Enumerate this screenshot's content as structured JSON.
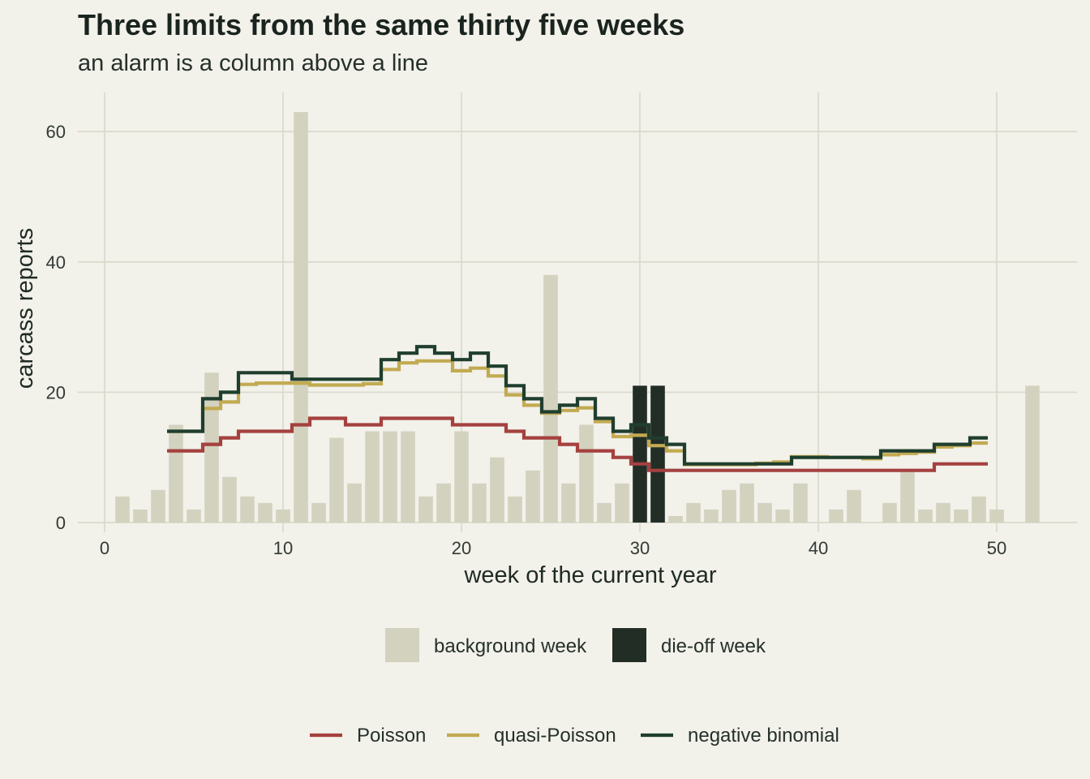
{
  "chart_data": {
    "type": "bar",
    "title": "Three limits from the same thirty five weeks",
    "subtitle": "an alarm is a column above a line",
    "xlabel": "week of the current year",
    "ylabel": "carcass reports",
    "xlim": [
      -1.5,
      54.5
    ],
    "ylim": [
      -1.5,
      66
    ],
    "x_ticks": [
      0,
      10,
      20,
      30,
      40,
      50
    ],
    "y_ticks": [
      0,
      20,
      40,
      60
    ],
    "grid": true,
    "bars": {
      "weeks": [
        1,
        2,
        3,
        4,
        5,
        6,
        7,
        8,
        9,
        10,
        11,
        12,
        13,
        14,
        15,
        16,
        17,
        18,
        19,
        20,
        21,
        22,
        23,
        24,
        25,
        26,
        27,
        28,
        29,
        30,
        31,
        32,
        33,
        34,
        35,
        36,
        37,
        38,
        39,
        40,
        41,
        42,
        43,
        44,
        45,
        46,
        47,
        48,
        49,
        50,
        51,
        52
      ],
      "values": [
        4,
        2,
        5,
        15,
        2,
        23,
        7,
        4,
        3,
        2,
        63,
        3,
        13,
        6,
        14,
        14,
        14,
        4,
        6,
        14,
        6,
        10,
        4,
        8,
        38,
        6,
        15,
        3,
        6,
        21,
        21,
        1,
        3,
        2,
        5,
        6,
        3,
        2,
        6,
        0,
        2,
        5,
        0,
        3,
        8,
        2,
        3,
        2,
        4,
        2,
        0,
        21
      ],
      "type": [
        "background",
        "background",
        "background",
        "background",
        "background",
        "background",
        "background",
        "background",
        "background",
        "background",
        "background",
        "background",
        "background",
        "background",
        "background",
        "background",
        "background",
        "background",
        "background",
        "background",
        "background",
        "background",
        "background",
        "background",
        "background",
        "background",
        "background",
        "background",
        "background",
        "die-off",
        "die-off",
        "background",
        "background",
        "background",
        "background",
        "background",
        "background",
        "background",
        "background",
        "background",
        "background",
        "background",
        "background",
        "background",
        "background",
        "background",
        "background",
        "background",
        "background",
        "background",
        "background",
        "background"
      ]
    },
    "bar_legend": [
      {
        "key": "background",
        "label": "background week",
        "color": "#d3d2bf"
      },
      {
        "key": "die-off",
        "label": "die-off week",
        "color": "#222d26"
      }
    ],
    "series": [
      {
        "name": "Poisson",
        "color": "#a4413f",
        "weeks": [
          4,
          5,
          6,
          7,
          8,
          9,
          10,
          11,
          12,
          13,
          14,
          15,
          16,
          17,
          18,
          19,
          20,
          21,
          22,
          23,
          24,
          25,
          26,
          27,
          28,
          29,
          30,
          31,
          32,
          33,
          34,
          35,
          36,
          37,
          38,
          39,
          40,
          41,
          42,
          43,
          44,
          45,
          46,
          47,
          48,
          49
        ],
        "values": [
          11,
          11,
          12,
          13,
          14,
          14,
          14,
          15,
          16,
          16,
          15,
          15,
          16,
          16,
          16,
          16,
          15,
          15,
          15,
          14,
          13,
          13,
          12,
          11,
          11,
          10,
          9,
          8,
          8,
          8,
          8,
          8,
          8,
          8,
          8,
          8,
          8,
          8,
          8,
          8,
          8,
          8,
          8,
          9,
          9,
          9
        ]
      },
      {
        "name": "quasi-Poisson",
        "color": "#c2aa52",
        "weeks": [
          4,
          5,
          6,
          7,
          8,
          9,
          10,
          11,
          12,
          13,
          14,
          15,
          16,
          17,
          18,
          19,
          20,
          21,
          22,
          23,
          24,
          25,
          26,
          27,
          28,
          29,
          30,
          31,
          32,
          33,
          34,
          35,
          36,
          37,
          38,
          39,
          40,
          41,
          42,
          43,
          44,
          45,
          46,
          47,
          48,
          49
        ],
        "values": [
          14,
          14,
          17.5,
          18.5,
          21.2,
          21.4,
          21.4,
          21.4,
          21.1,
          21.1,
          21.1,
          21.3,
          23.5,
          24.5,
          24.8,
          24.8,
          23.3,
          23.7,
          22.5,
          19.6,
          18,
          16.8,
          17.2,
          17.6,
          15.5,
          13.2,
          13.4,
          11.8,
          11,
          8.9,
          8.9,
          8.9,
          8.9,
          9.1,
          9.3,
          10.1,
          10.1,
          10,
          10,
          9.8,
          10.4,
          10.6,
          10.8,
          11.6,
          11.8,
          12.2
        ]
      },
      {
        "name": "negative binomial",
        "color": "#1f3e2e",
        "weeks": [
          4,
          5,
          6,
          7,
          8,
          9,
          10,
          11,
          12,
          13,
          14,
          15,
          16,
          17,
          18,
          19,
          20,
          21,
          22,
          23,
          24,
          25,
          26,
          27,
          28,
          29,
          30,
          31,
          32,
          33,
          34,
          35,
          36,
          37,
          38,
          39,
          40,
          41,
          42,
          43,
          44,
          45,
          46,
          47,
          48,
          49
        ],
        "values": [
          14,
          14,
          19,
          20,
          23,
          23,
          23,
          22,
          22,
          22,
          22,
          22,
          25,
          26,
          27,
          26,
          25,
          26,
          24,
          21,
          19,
          17,
          18,
          19,
          16,
          14,
          15,
          13,
          12,
          9,
          9,
          9,
          9,
          9,
          9,
          10,
          10,
          10,
          10,
          10,
          11,
          11,
          11,
          12,
          12,
          13
        ]
      }
    ],
    "bar_legend_position": "bottom",
    "line_legend_position": "bottom"
  }
}
